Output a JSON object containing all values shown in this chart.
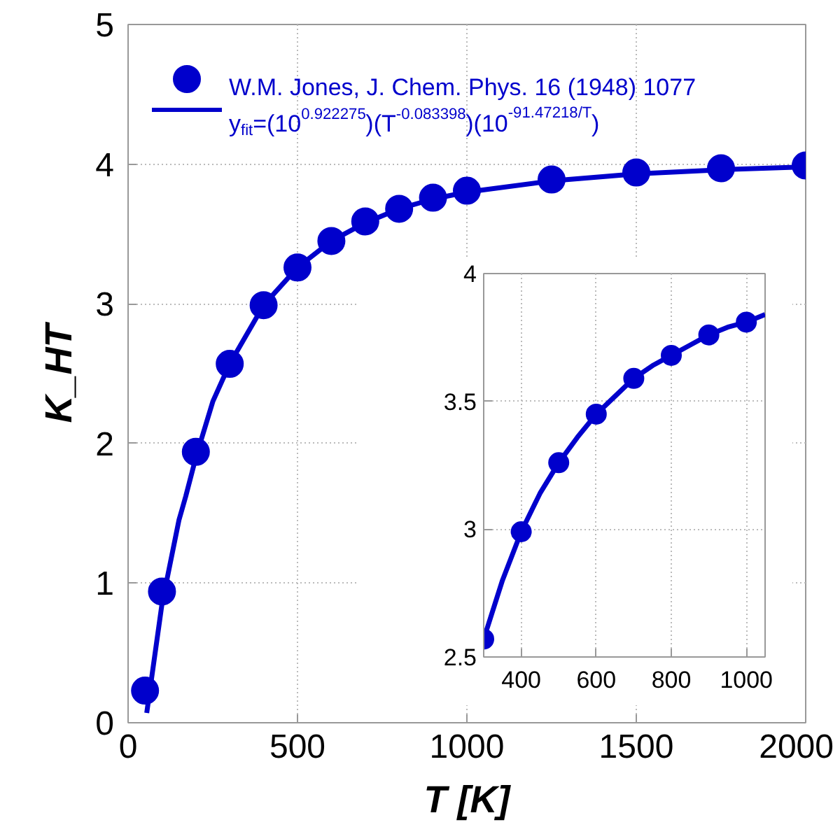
{
  "chart_data": [
    {
      "type": "scatter",
      "xlabel": "T [K]",
      "ylabel": "K_HT",
      "xlim": [
        0,
        2000
      ],
      "ylim": [
        0,
        5
      ],
      "xticks": [
        0,
        500,
        1000,
        1500,
        2000
      ],
      "yticks": [
        0,
        1,
        2,
        3,
        4,
        5
      ],
      "grid": true,
      "legend": "top",
      "series": [
        {
          "name": "W.M. Jones, J. Chem. Phys. 16 (1948) 1077",
          "color": "#0000cc",
          "marker": "circle",
          "x": [
            50,
            100,
            200,
            300,
            400,
            500,
            600,
            700,
            800,
            900,
            1000,
            1250,
            1500,
            1750,
            2000
          ],
          "values": [
            0.23,
            0.94,
            1.94,
            2.57,
            2.99,
            3.26,
            3.45,
            3.59,
            3.68,
            3.76,
            3.81,
            3.89,
            3.94,
            3.97,
            3.99
          ]
        },
        {
          "name": "y$_{fit}$=(10$^{0.922275}$)(T$^{-0.083398}$)(10$^{-91.47218/T}$)",
          "color": "#0000cc",
          "type": "line",
          "x": [
            55,
            100,
            150,
            170,
            200,
            250,
            300,
            400,
            500,
            600,
            700,
            800,
            900,
            1000,
            1250,
            1500,
            1750,
            2000
          ],
          "values": [
            0.07,
            0.85,
            1.45,
            1.62,
            1.9,
            2.3,
            2.57,
            2.99,
            3.26,
            3.45,
            3.58,
            3.68,
            3.75,
            3.8,
            3.88,
            3.93,
            3.96,
            3.98
          ]
        }
      ]
    },
    {
      "type": "scatter",
      "xlim": [
        300,
        1050
      ],
      "ylim": [
        2.5,
        4
      ],
      "xticks": [
        400,
        600,
        800,
        1000
      ],
      "yticks": [
        2.5,
        3,
        3.5,
        4
      ],
      "grid": true,
      "series": [
        {
          "color": "#0000cc",
          "marker": "circle",
          "x": [
            300,
            400,
            500,
            600,
            700,
            800,
            900,
            1000
          ],
          "values": [
            2.57,
            2.99,
            3.26,
            3.45,
            3.59,
            3.68,
            3.76,
            3.81
          ]
        },
        {
          "color": "#0000cc",
          "type": "line",
          "x": [
            300,
            350,
            400,
            450,
            500,
            550,
            600,
            650,
            700,
            750,
            800,
            850,
            900,
            950,
            1000,
            1050
          ],
          "values": [
            2.57,
            2.8,
            2.99,
            3.14,
            3.26,
            3.36,
            3.45,
            3.52,
            3.59,
            3.64,
            3.68,
            3.72,
            3.76,
            3.79,
            3.81,
            3.84
          ]
        }
      ]
    }
  ]
}
